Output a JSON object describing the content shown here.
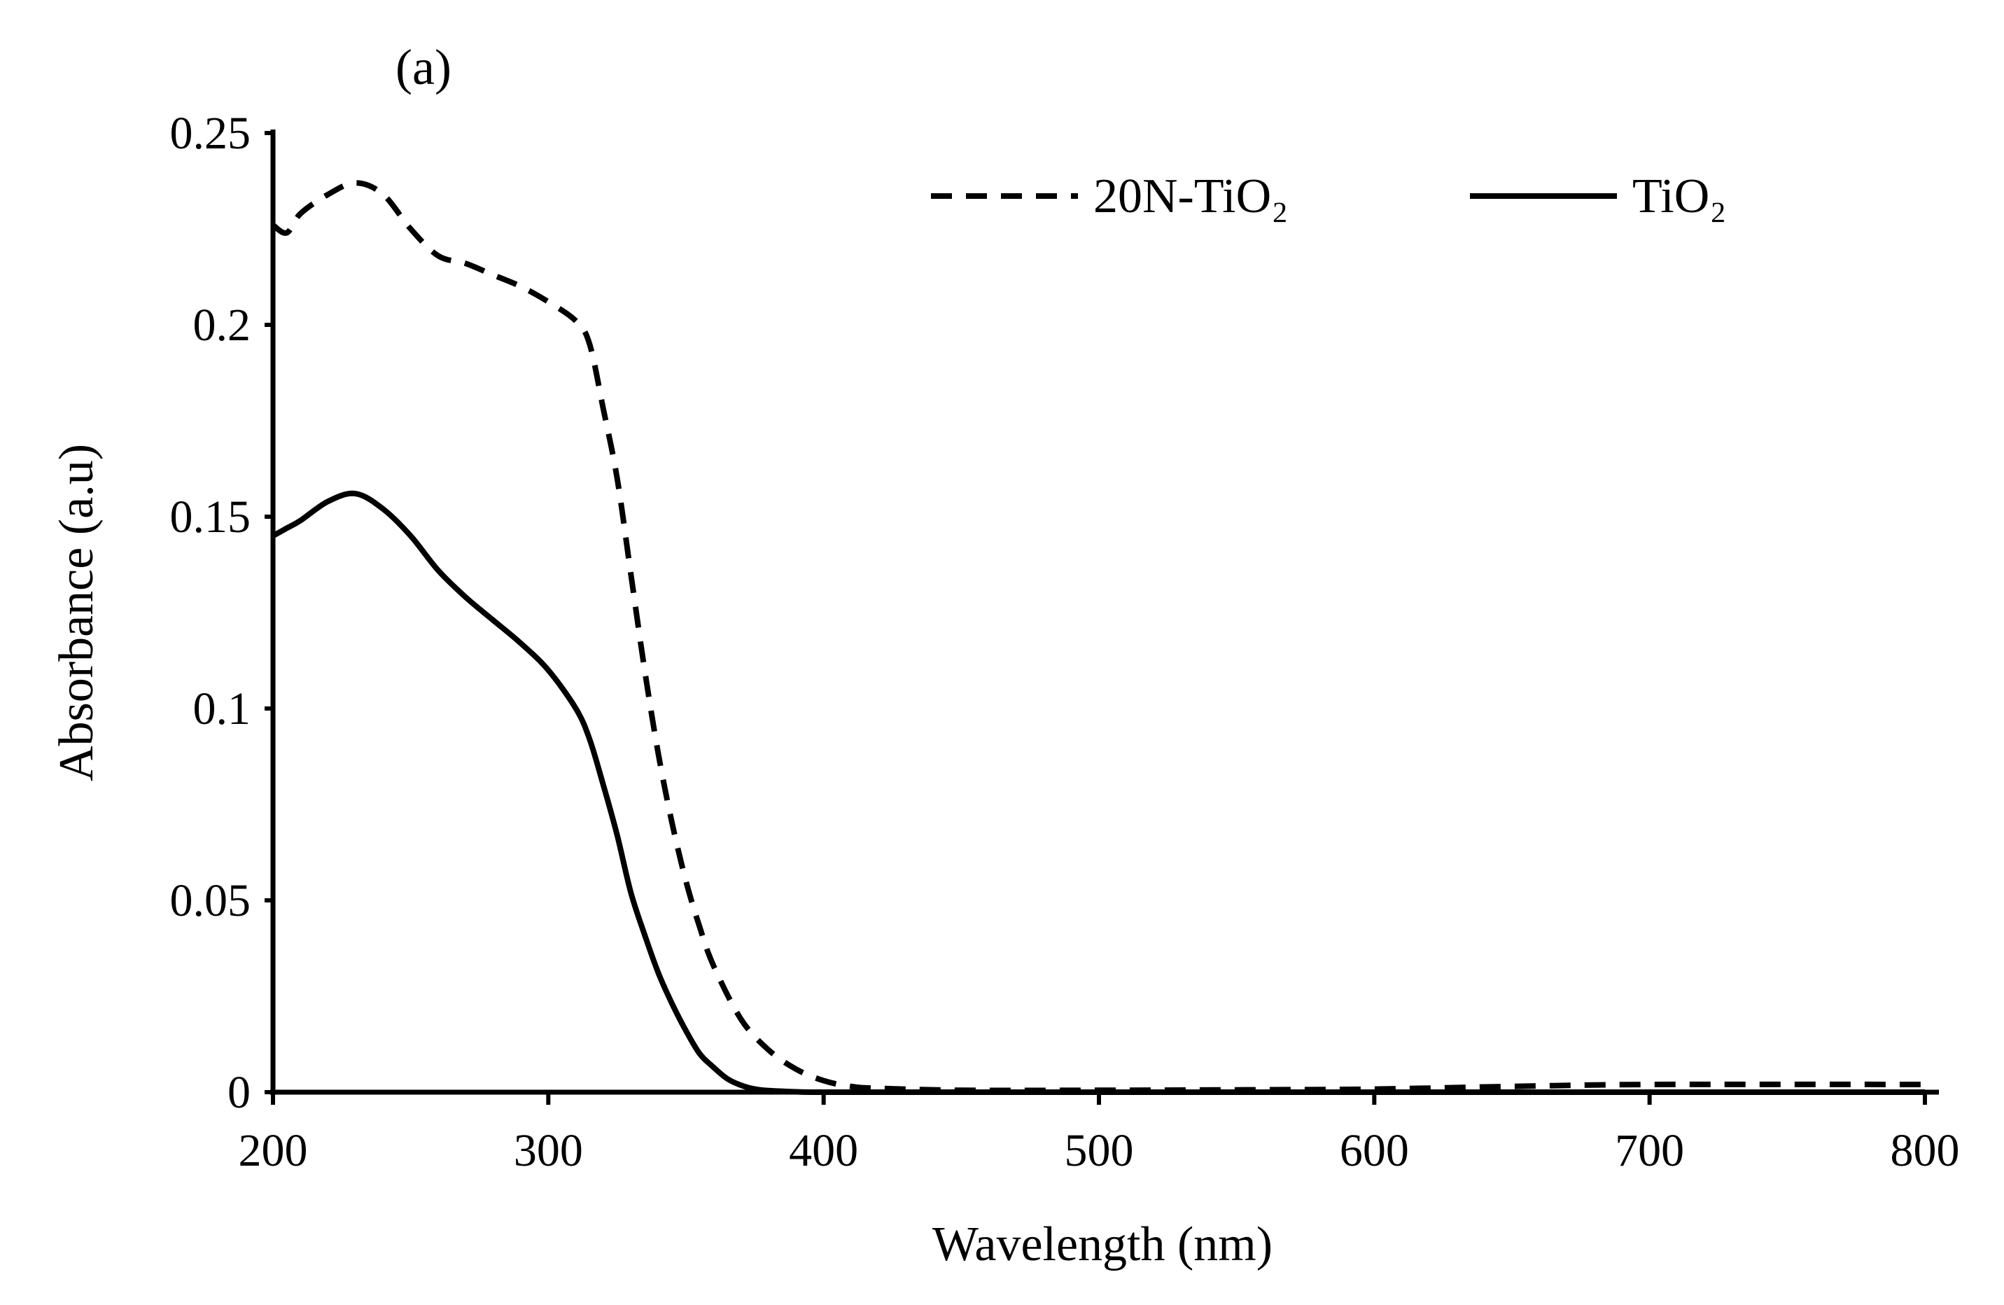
{
  "chart_data": {
    "type": "line",
    "panel_label": "(a)",
    "xlabel": "Wavelength (nm)",
    "ylabel": "Absorbance (a.u)",
    "xlim": [
      200,
      800
    ],
    "ylim": [
      0,
      0.25
    ],
    "xticks": [
      "200",
      "300",
      "400",
      "500",
      "600",
      "700",
      "800"
    ],
    "yticks": [
      "0",
      "0.05",
      "0.1",
      "0.15",
      "0.2",
      "0.25"
    ],
    "grid": false,
    "legend_position": "top-right",
    "series": [
      {
        "name": "20N-TiO₂",
        "style": "dashed",
        "color": "#000000",
        "x": [
          200,
          205,
          210,
          220,
          230,
          240,
          250,
          260,
          270,
          280,
          290,
          300,
          310,
          315,
          320,
          325,
          330,
          335,
          340,
          345,
          350,
          355,
          360,
          370,
          380,
          390,
          400,
          410,
          420,
          450,
          500,
          550,
          600,
          650,
          700,
          800
        ],
        "y": [
          0.226,
          0.224,
          0.229,
          0.234,
          0.237,
          0.234,
          0.225,
          0.218,
          0.216,
          0.213,
          0.21,
          0.206,
          0.201,
          0.195,
          0.178,
          0.16,
          0.135,
          0.11,
          0.088,
          0.07,
          0.055,
          0.043,
          0.033,
          0.019,
          0.011,
          0.006,
          0.003,
          0.0015,
          0.001,
          0.0005,
          0.0005,
          0.0006,
          0.0008,
          0.0015,
          0.002,
          0.002
        ]
      },
      {
        "name": "TiO₂",
        "style": "solid",
        "color": "#000000",
        "x": [
          200,
          205,
          210,
          220,
          230,
          240,
          250,
          260,
          270,
          280,
          290,
          300,
          310,
          315,
          320,
          325,
          330,
          335,
          340,
          345,
          350,
          355,
          360,
          365,
          370,
          375,
          380,
          390,
          400,
          450,
          500,
          600,
          700,
          800
        ],
        "y": [
          0.145,
          0.147,
          0.149,
          0.154,
          0.156,
          0.152,
          0.145,
          0.136,
          0.129,
          0.123,
          0.117,
          0.11,
          0.1,
          0.092,
          0.08,
          0.067,
          0.052,
          0.041,
          0.031,
          0.023,
          0.016,
          0.01,
          0.0065,
          0.0035,
          0.0018,
          0.0008,
          0.0004,
          0.0001,
          0.0,
          0.0,
          0.0,
          0.0,
          0.0,
          0.0
        ]
      }
    ]
  }
}
